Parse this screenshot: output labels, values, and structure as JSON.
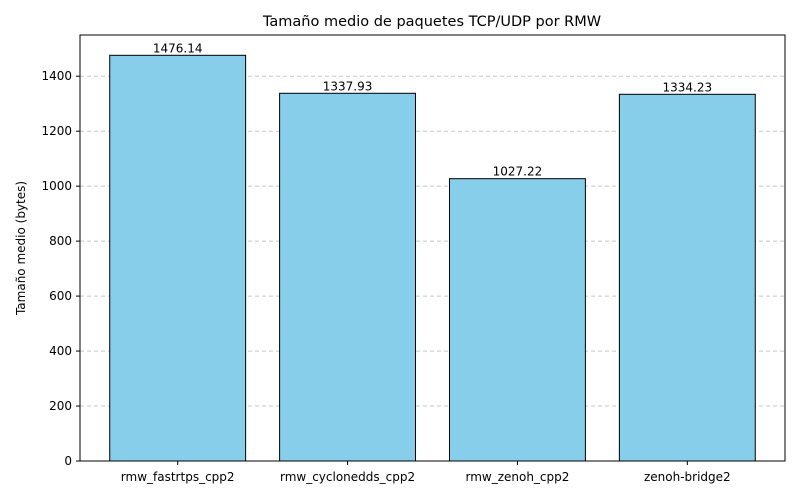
{
  "chart_data": {
    "type": "bar",
    "title": "Tamaño medio de paquetes TCP/UDP por RMW",
    "xlabel": "",
    "ylabel": "Tamaño medio (bytes)",
    "categories": [
      "rmw_fastrtps_cpp2",
      "rmw_cyclonedds_cpp2",
      "rmw_zenoh_cpp2",
      "zenoh-bridge2"
    ],
    "values": [
      1476.14,
      1337.93,
      1027.22,
      1334.23
    ],
    "value_labels": [
      "1476.14",
      "1337.93",
      "1027.22",
      "1334.23"
    ],
    "ylim": [
      0,
      1550
    ],
    "yticks": [
      0,
      200,
      400,
      600,
      800,
      1000,
      1200,
      1400
    ],
    "grid": "y-dashed",
    "colors": {
      "bar_fill": "#87ceeb",
      "bar_edge": "#000000",
      "grid": "#c8c8c8"
    }
  }
}
